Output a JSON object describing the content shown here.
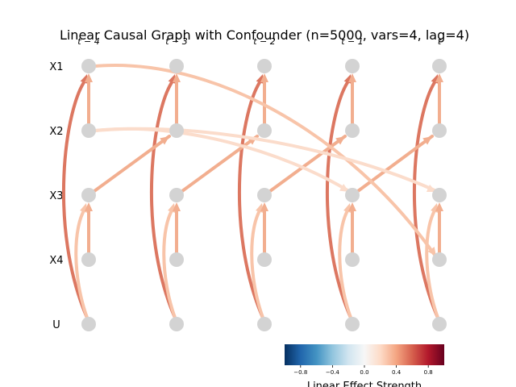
{
  "title": "Linear Causal Graph with Confounder (n=5000, vars=4, lag=4)",
  "lag_labels": [
    "t − 4",
    "t − 3",
    "t − 2",
    "t − 1",
    "t"
  ],
  "row_labels": [
    "X1",
    "X2",
    "X3",
    "X4",
    "U"
  ],
  "colorbar": {
    "label": "Linear Effect Strength",
    "ticks": [
      "−0.8",
      "−0.4",
      "0.0",
      "0.4",
      "0.8"
    ],
    "tick_values": [
      -0.8,
      -0.4,
      0.0,
      0.4,
      0.8
    ],
    "range": [
      -1,
      1
    ],
    "colors": [
      "#053061",
      "#2166ac",
      "#4393c3",
      "#92c5de",
      "#d1e5f0",
      "#f7f7f7",
      "#fddbc7",
      "#f4a582",
      "#d6604d",
      "#b2182b",
      "#67001f"
    ]
  },
  "colors": {
    "node": "#d3d3d3",
    "edge_strong": "#dc7761",
    "edge_medium": "#f2ae8f",
    "edge_light": "#f8c4a9",
    "edge_faint": "#fbdccb"
  },
  "edges": [
    {
      "from": "U",
      "to": "X1",
      "lag": 0,
      "strength": 0.62,
      "kind": "arc-left"
    },
    {
      "from": "U",
      "to": "X3",
      "lag": 0,
      "strength": 0.3,
      "kind": "arc-right"
    },
    {
      "from": "X2",
      "to": "X1",
      "lag": 0,
      "strength": 0.42,
      "kind": "straight"
    },
    {
      "from": "X4",
      "to": "X3",
      "lag": 0,
      "strength": 0.38,
      "kind": "straight"
    },
    {
      "from": "X3",
      "to": "X2",
      "lag": 1,
      "strength": 0.36,
      "kind": "straight"
    },
    {
      "from": "X1",
      "to": "X4",
      "lag": 4,
      "strength": 0.28,
      "kind": "long"
    },
    {
      "from": "X2",
      "to": "X3",
      "lag": 3,
      "strength": 0.2,
      "kind": "long"
    },
    {
      "from": "X2",
      "to": "X3",
      "lag": 4,
      "strength": 0.16,
      "kind": "long"
    }
  ]
}
